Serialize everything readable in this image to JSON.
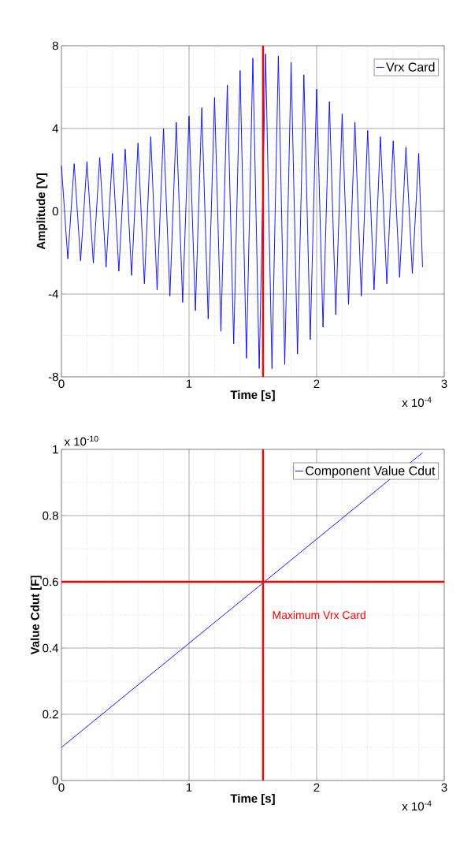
{
  "chart_data": [
    {
      "type": "line",
      "xlabel": "Time [s]",
      "ylabel": "Amplitude [V]",
      "xlim": [
        0,
        3
      ],
      "ylim": [
        -8,
        8
      ],
      "xticks": [
        0,
        1,
        2,
        3
      ],
      "yticks": [
        -8,
        -4,
        0,
        4,
        8
      ],
      "grid": true,
      "legend": "top right",
      "marker": "none",
      "line_style": "solid",
      "annotations": [
        "x 10$^{-4}$"
      ],
      "ref_lines": [
        {
          "axis": "x",
          "value": 1.58,
          "color": "#ff0000"
        }
      ],
      "series": [
        {
          "name": "Vrx Card",
          "color": "#0000ff",
          "x": [
            0,
            0.05,
            0.1,
            0.15,
            0.2,
            0.25,
            0.3,
            0.35,
            0.4,
            0.45,
            0.5,
            0.55,
            0.6,
            0.65,
            0.7,
            0.75,
            0.8,
            0.85,
            0.9,
            0.95,
            1,
            1.05,
            1.1,
            1.15,
            1.2,
            1.25,
            1.3,
            1.35,
            1.4,
            1.45,
            1.5,
            1.55,
            1.6,
            1.65,
            1.7,
            1.75,
            1.8,
            1.85,
            1.9,
            1.95,
            2,
            2.05,
            2.1,
            2.15,
            2.2,
            2.25,
            2.3,
            2.35,
            2.4,
            2.45,
            2.5,
            2.55,
            2.6,
            2.65,
            2.7,
            2.75,
            2.8,
            2.83
          ],
          "values": [
            2.2,
            -2.3,
            2.3,
            -2.4,
            2.4,
            -2.5,
            2.6,
            -2.7,
            2.8,
            -2.9,
            3.0,
            -3.1,
            3.3,
            -3.5,
            3.6,
            -3.8,
            4.0,
            -4.1,
            4.3,
            -4.4,
            4.6,
            -4.8,
            5.0,
            -5.2,
            5.5,
            -5.8,
            6.1,
            -6.4,
            6.8,
            -7.1,
            7.4,
            -7.6,
            7.6,
            -7.6,
            7.5,
            -7.4,
            7.2,
            -6.9,
            6.6,
            -6.2,
            5.9,
            -5.6,
            5.3,
            -5.0,
            4.7,
            -4.5,
            4.3,
            -4.1,
            3.9,
            -3.8,
            3.6,
            -3.5,
            3.4,
            -3.2,
            3.1,
            -3.0,
            2.8,
            -2.7
          ]
        }
      ]
    },
    {
      "type": "line",
      "xlabel": "Time [s]",
      "ylabel": "Value Cdut [F]",
      "xlim": [
        0,
        3
      ],
      "ylim": [
        0,
        1
      ],
      "xticks": [
        0,
        1,
        2,
        3
      ],
      "yticks": [
        0,
        0.2,
        0.4,
        0.6,
        0.8,
        1
      ],
      "grid": true,
      "legend": "top right",
      "marker": "none",
      "line_style": "solid",
      "annotations": [
        "x 10$^{-4}$",
        "x 10$^{-10}$",
        "Maximum Vrx Card"
      ],
      "ref_lines": [
        {
          "axis": "x",
          "value": 1.58,
          "color": "#ff0000"
        },
        {
          "axis": "y",
          "value": 0.6,
          "color": "#ff0000"
        }
      ],
      "series": [
        {
          "name": "Component Value Cdut",
          "color": "#0000ff",
          "x": [
            0,
            2.83
          ],
          "values": [
            0.1,
            0.99
          ]
        }
      ]
    }
  ]
}
